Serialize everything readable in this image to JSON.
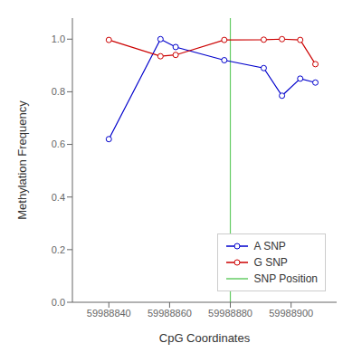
{
  "chart_data": {
    "type": "line",
    "xlabel": "CpG Coordinates",
    "ylabel": "Methylation Frequency",
    "x": [
      59988840,
      59988857,
      59988862,
      59988878,
      59988891,
      59988897,
      59988903,
      59988908
    ],
    "series": [
      {
        "name": "A SNP",
        "color": "#0000cc",
        "marker": "circle",
        "values": [
          0.62,
          1.0,
          0.97,
          0.92,
          0.89,
          0.785,
          0.85,
          0.835
        ]
      },
      {
        "name": "G SNP",
        "color": "#cc0000",
        "marker": "circle",
        "values": [
          0.997,
          0.935,
          0.94,
          0.997,
          0.998,
          1.0,
          0.997,
          0.905
        ]
      }
    ],
    "vlines": [
      {
        "name": "SNP Position",
        "color": "#66cc66",
        "x": 59988880
      }
    ],
    "xlim": [
      59988828,
      59988915
    ],
    "xticks": [
      59988840,
      59988860,
      59988880,
      59988900
    ],
    "ylim": [
      0.0,
      1.08
    ],
    "yticks": [
      {
        "value": 0.0,
        "label": "0.0"
      },
      0.2,
      0.4,
      0.6,
      0.8,
      {
        "value": 1.0,
        "label": "1.0"
      }
    ],
    "grid": false,
    "legend": "lower right"
  }
}
